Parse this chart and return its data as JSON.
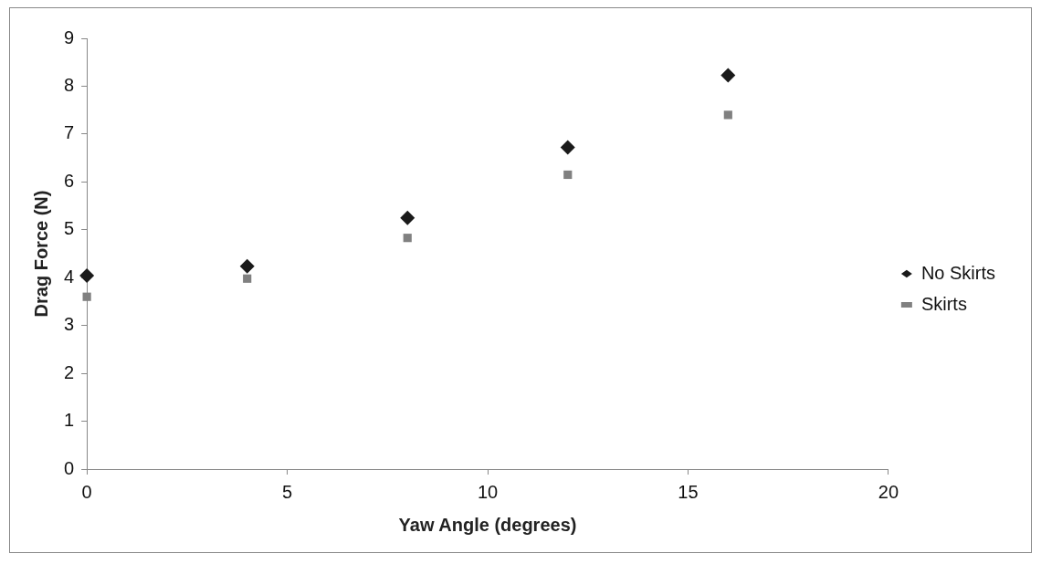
{
  "chart_data": {
    "type": "scatter",
    "xlabel": "Yaw Angle (degrees)",
    "ylabel": "Drag Force (N)",
    "x": [
      0,
      4,
      8,
      12,
      16
    ],
    "series": [
      {
        "name": "No Skirts",
        "color": "#1a1a1a",
        "marker": "diamond",
        "values": [
          4.04,
          4.24,
          5.25,
          6.72,
          8.23
        ]
      },
      {
        "name": "Skirts",
        "color": "#808080",
        "marker": "square",
        "values": [
          3.6,
          3.98,
          4.83,
          6.15,
          7.4
        ]
      }
    ],
    "xlim": [
      0,
      20
    ],
    "xticks": [
      0,
      5,
      10,
      15,
      20
    ],
    "ylim": [
      0,
      9
    ],
    "yticks": [
      0,
      1,
      2,
      3,
      4,
      5,
      6,
      7,
      8,
      9
    ],
    "grid": false,
    "legend": "right"
  }
}
